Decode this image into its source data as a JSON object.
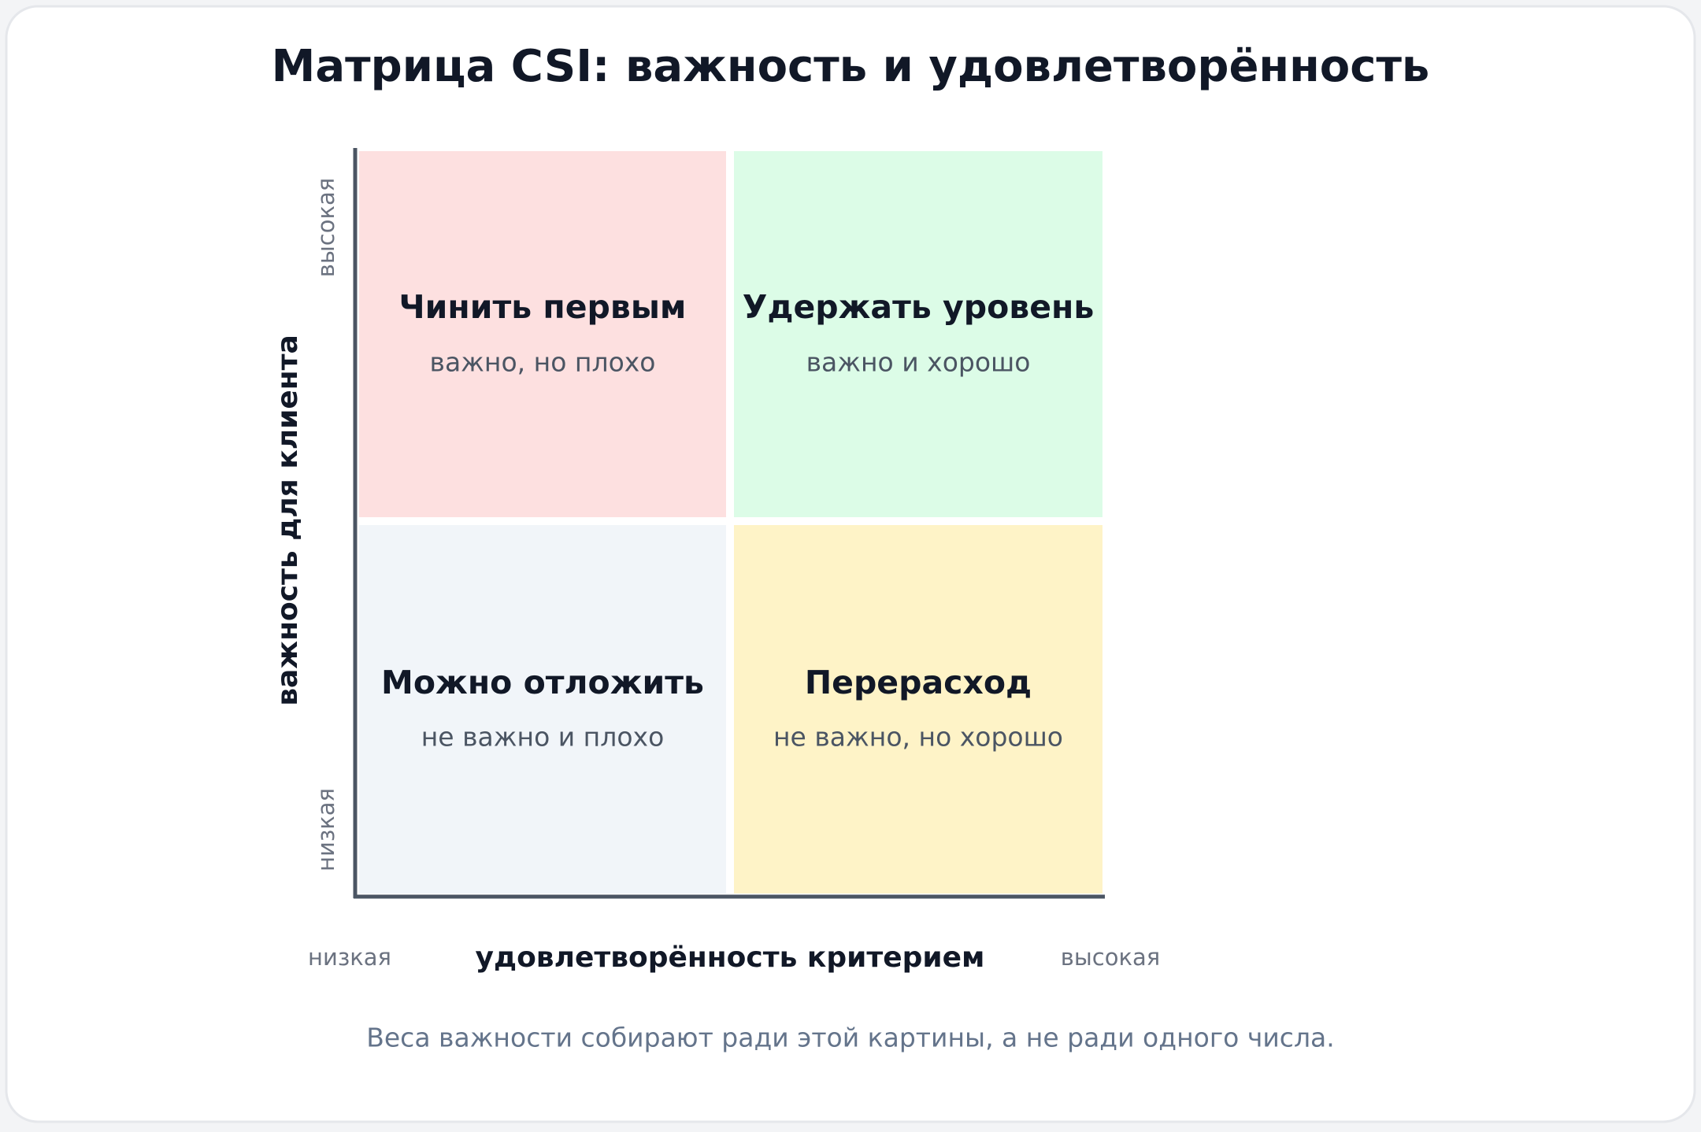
{
  "title": "Матрица CSI: важность и удовлетворённость",
  "y_axis": {
    "label": "важность для клиента",
    "high": "высокая",
    "low": "низкая"
  },
  "x_axis": {
    "label": "удовлетворённость критерием",
    "low": "низкая",
    "high": "высокая"
  },
  "quadrants": [
    {
      "title": "Чинить первым",
      "subtitle": "важно, но плохо"
    },
    {
      "title": "Удержать уровень",
      "subtitle": "важно и хорошо"
    },
    {
      "title": "Можно отложить",
      "subtitle": "не важно и плохо"
    },
    {
      "title": "Перерасход",
      "subtitle": "не важно, но хорошо"
    }
  ],
  "footnote": "Веса важности собирают ради этой картины, а не ради одного числа."
}
